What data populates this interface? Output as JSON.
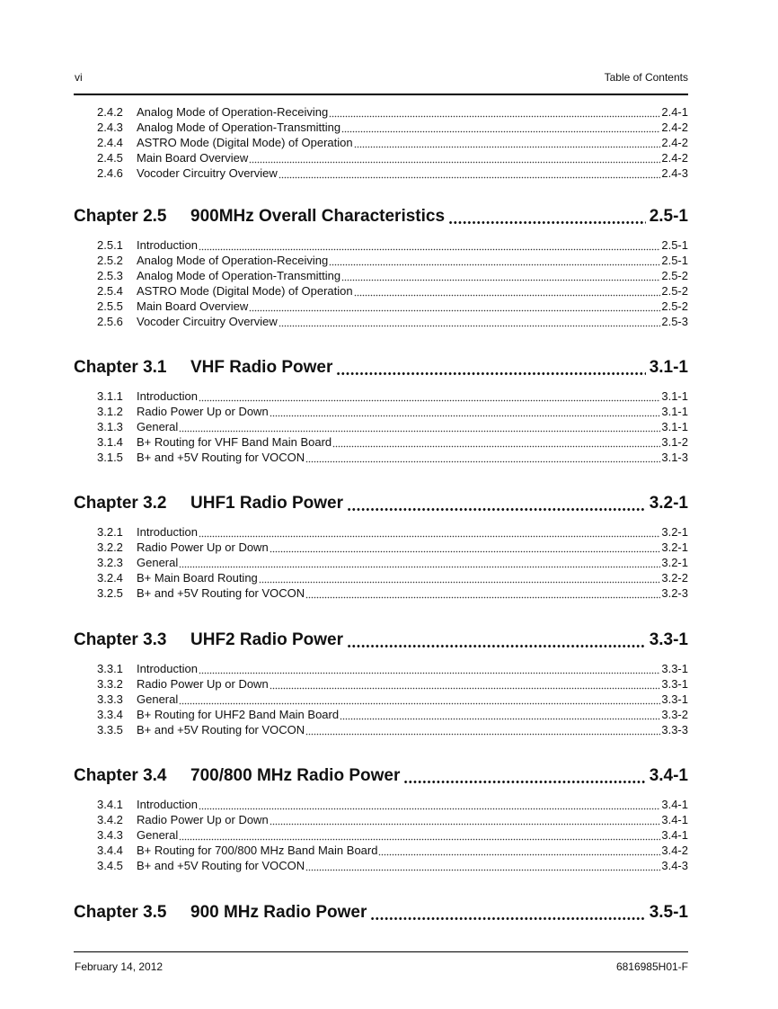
{
  "header": {
    "left": "vi",
    "right": "Table of Contents"
  },
  "footer": {
    "left": "February 14, 2012",
    "right": "6816985H01-F"
  },
  "sections": [
    {
      "chapter": null,
      "entries": [
        {
          "num": "2.4.2",
          "title": "Analog Mode of Operation-Receiving",
          "page": "2.4-1"
        },
        {
          "num": "2.4.3",
          "title": "Analog Mode of Operation-Transmitting",
          "page": "2.4-2"
        },
        {
          "num": "2.4.4",
          "title": "ASTRO Mode (Digital Mode) of Operation",
          "page": "2.4-2"
        },
        {
          "num": "2.4.5",
          "title": "Main Board Overview",
          "page": "2.4-2"
        },
        {
          "num": "2.4.6",
          "title": "Vocoder Circuitry Overview",
          "page": "2.4-3"
        }
      ]
    },
    {
      "chapter": {
        "num": "Chapter 2.5",
        "title": "900MHz Overall Characteristics",
        "page": "2.5-1"
      },
      "entries": [
        {
          "num": "2.5.1",
          "title": "Introduction",
          "page": "2.5-1"
        },
        {
          "num": "2.5.2",
          "title": "Analog Mode of Operation-Receiving",
          "page": "2.5-1"
        },
        {
          "num": "2.5.3",
          "title": "Analog Mode of Operation-Transmitting",
          "page": "2.5-2"
        },
        {
          "num": "2.5.4",
          "title": "ASTRO Mode (Digital Mode) of Operation",
          "page": "2.5-2"
        },
        {
          "num": "2.5.5",
          "title": "Main Board Overview",
          "page": "2.5-2"
        },
        {
          "num": "2.5.6",
          "title": "Vocoder Circuitry Overview",
          "page": "2.5-3"
        }
      ]
    },
    {
      "chapter": {
        "num": "Chapter 3.1",
        "title": "VHF Radio Power",
        "page": "3.1-1"
      },
      "entries": [
        {
          "num": "3.1.1",
          "title": "Introduction",
          "page": "3.1-1"
        },
        {
          "num": "3.1.2",
          "title": "Radio Power Up or Down",
          "page": "3.1-1"
        },
        {
          "num": "3.1.3",
          "title": "General",
          "page": "3.1-1"
        },
        {
          "num": "3.1.4",
          "title": "B+ Routing for VHF Band Main Board",
          "page": "3.1-2"
        },
        {
          "num": "3.1.5",
          "title": "B+ and +5V Routing for VOCON",
          "page": "3.1-3"
        }
      ]
    },
    {
      "chapter": {
        "num": "Chapter 3.2",
        "title": "UHF1 Radio Power",
        "page": "3.2-1"
      },
      "entries": [
        {
          "num": "3.2.1",
          "title": "Introduction",
          "page": "3.2-1"
        },
        {
          "num": "3.2.2",
          "title": "Radio Power Up or Down",
          "page": "3.2-1"
        },
        {
          "num": "3.2.3",
          "title": "General",
          "page": "3.2-1"
        },
        {
          "num": "3.2.4",
          "title": "B+ Main Board Routing",
          "page": "3.2-2"
        },
        {
          "num": "3.2.5",
          "title": "B+ and +5V Routing for VOCON",
          "page": "3.2-3"
        }
      ]
    },
    {
      "chapter": {
        "num": "Chapter 3.3",
        "title": "UHF2 Radio Power",
        "page": "3.3-1"
      },
      "entries": [
        {
          "num": "3.3.1",
          "title": "Introduction",
          "page": "3.3-1"
        },
        {
          "num": "3.3.2",
          "title": "Radio Power Up or Down",
          "page": "3.3-1"
        },
        {
          "num": "3.3.3",
          "title": "General",
          "page": "3.3-1"
        },
        {
          "num": "3.3.4",
          "title": "B+ Routing for UHF2 Band Main Board",
          "page": "3.3-2"
        },
        {
          "num": "3.3.5",
          "title": "B+ and +5V Routing for VOCON",
          "page": "3.3-3"
        }
      ]
    },
    {
      "chapter": {
        "num": "Chapter 3.4",
        "title": "700/800 MHz Radio Power",
        "page": "3.4-1"
      },
      "entries": [
        {
          "num": "3.4.1",
          "title": "Introduction",
          "page": "3.4-1"
        },
        {
          "num": "3.4.2",
          "title": "Radio Power Up or Down",
          "page": "3.4-1"
        },
        {
          "num": "3.4.3",
          "title": "General",
          "page": "3.4-1"
        },
        {
          "num": "3.4.4",
          "title": "B+ Routing for 700/800 MHz Band Main Board",
          "page": "3.4-2"
        },
        {
          "num": "3.4.5",
          "title": "B+ and +5V Routing for VOCON",
          "page": "3.4-3"
        }
      ]
    },
    {
      "chapter": {
        "num": "Chapter 3.5",
        "title": "900 MHz Radio Power",
        "page": "3.5-1"
      },
      "entries": []
    }
  ]
}
